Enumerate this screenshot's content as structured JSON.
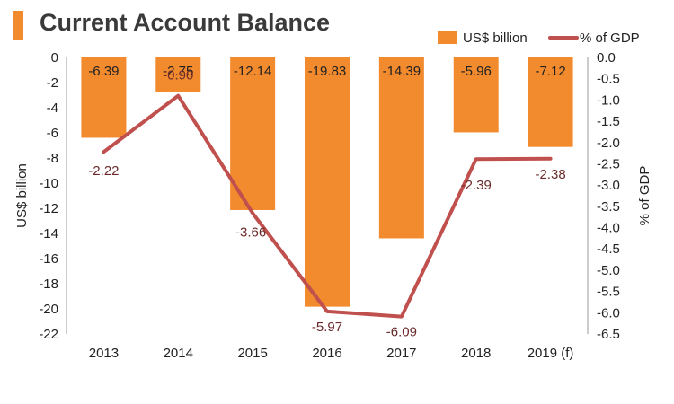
{
  "title": "Current Account Balance",
  "colors": {
    "bar": "#f28a2e",
    "line": "#c0504d",
    "title_accent": "#f28a2e"
  },
  "chart_data": {
    "type": "bar",
    "title": "Current Account Balance",
    "categories": [
      "2013",
      "2014",
      "2015",
      "2016",
      "2017",
      "2018",
      "2019 (f)"
    ],
    "series": [
      {
        "name": "US$ billion",
        "type": "bar",
        "axis": "left",
        "values": [
          -6.39,
          -2.75,
          -12.14,
          -19.83,
          -14.39,
          -5.96,
          -7.12
        ],
        "labels": [
          "-6.39",
          "-2.75",
          "-12.14",
          "-19.83",
          "-14.39",
          "-5.96",
          "-7.12"
        ]
      },
      {
        "name": "% of GDP",
        "type": "line",
        "axis": "right",
        "values": [
          -2.22,
          -0.9,
          -3.66,
          -5.97,
          -6.09,
          -2.39,
          -2.38
        ],
        "labels": [
          "-2.22",
          "-0.90",
          "-3.66",
          "-5.97",
          "-6.09",
          "-2.39",
          "-2.38"
        ]
      }
    ],
    "ylabel_left": "US$ billion",
    "ylabel_right": "% of GDP",
    "ylim_left": [
      -22,
      0
    ],
    "yticks_left": [
      "0",
      "-2",
      "-4",
      "-6",
      "-8",
      "-10",
      "-12",
      "-14",
      "-16",
      "-18",
      "-20",
      "-22"
    ],
    "ylim_right": [
      -6.5,
      0
    ],
    "yticks_right": [
      "0.0",
      "-0.5",
      "-1.0",
      "-1.5",
      "-2.0",
      "-2.5",
      "-3.0",
      "-3.5",
      "-4.0",
      "-4.5",
      "-5.0",
      "-5.5",
      "-6.0",
      "-6.5"
    ],
    "grid": false,
    "legend_position": "top-right"
  }
}
